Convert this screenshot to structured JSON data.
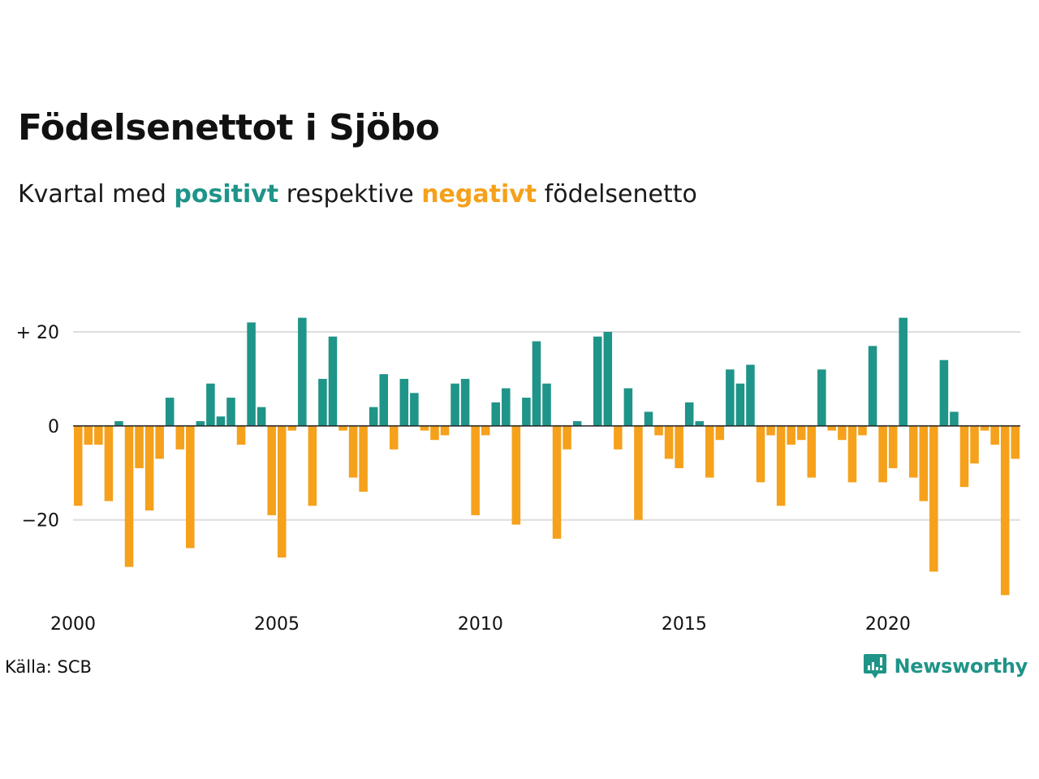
{
  "title": "Födelsenettot i Sjöbo",
  "subtitle": {
    "prefix": "Kvartal med ",
    "positive": "positivt",
    "middle": " respektive ",
    "negative": "negativt",
    "suffix": " födelsenetto"
  },
  "source": "Källa: SCB",
  "brand": "Newsworthy",
  "colors": {
    "positive": "#1f9488",
    "negative": "#f5a11c",
    "grid": "#dddddd",
    "axis": "#222222"
  },
  "chart_data": {
    "type": "bar",
    "x_start": 2000,
    "periods_per_year": 4,
    "values": [
      -17,
      -4,
      -4,
      -16,
      1,
      -30,
      -9,
      -18,
      -7,
      6,
      -5,
      -26,
      1,
      9,
      2,
      6,
      -4,
      22,
      4,
      -19,
      -28,
      -1,
      23,
      -17,
      10,
      19,
      -1,
      -11,
      -14,
      4,
      11,
      -5,
      10,
      7,
      -1,
      -3,
      -2,
      9,
      10,
      -19,
      -2,
      5,
      8,
      -21,
      6,
      18,
      9,
      -24,
      -5,
      1,
      0,
      19,
      20,
      -5,
      8,
      -20,
      3,
      -2,
      -7,
      -9,
      5,
      1,
      -11,
      -3,
      12,
      9,
      13,
      -12,
      -2,
      -17,
      -4,
      -3,
      -11,
      12,
      -1,
      -3,
      -12,
      -2,
      17,
      -12,
      -9,
      23,
      -11,
      -16,
      -31,
      14,
      3,
      -13,
      -8,
      -1,
      -4,
      -36,
      -7
    ],
    "x_ticks": [
      {
        "value": 2000,
        "label": "2000"
      },
      {
        "value": 2005,
        "label": "2005"
      },
      {
        "value": 2010,
        "label": "2010"
      },
      {
        "value": 2015,
        "label": "2015"
      },
      {
        "value": 2020,
        "label": "2020"
      }
    ],
    "y_ticks": [
      {
        "value": 20,
        "label": "+ 20"
      },
      {
        "value": 0,
        "label": "0"
      },
      {
        "value": -20,
        "label": "−20"
      }
    ],
    "ylim": [
      -38,
      25
    ],
    "xlim": [
      2000,
      2023.25
    ],
    "grid": true,
    "legend": "none"
  }
}
